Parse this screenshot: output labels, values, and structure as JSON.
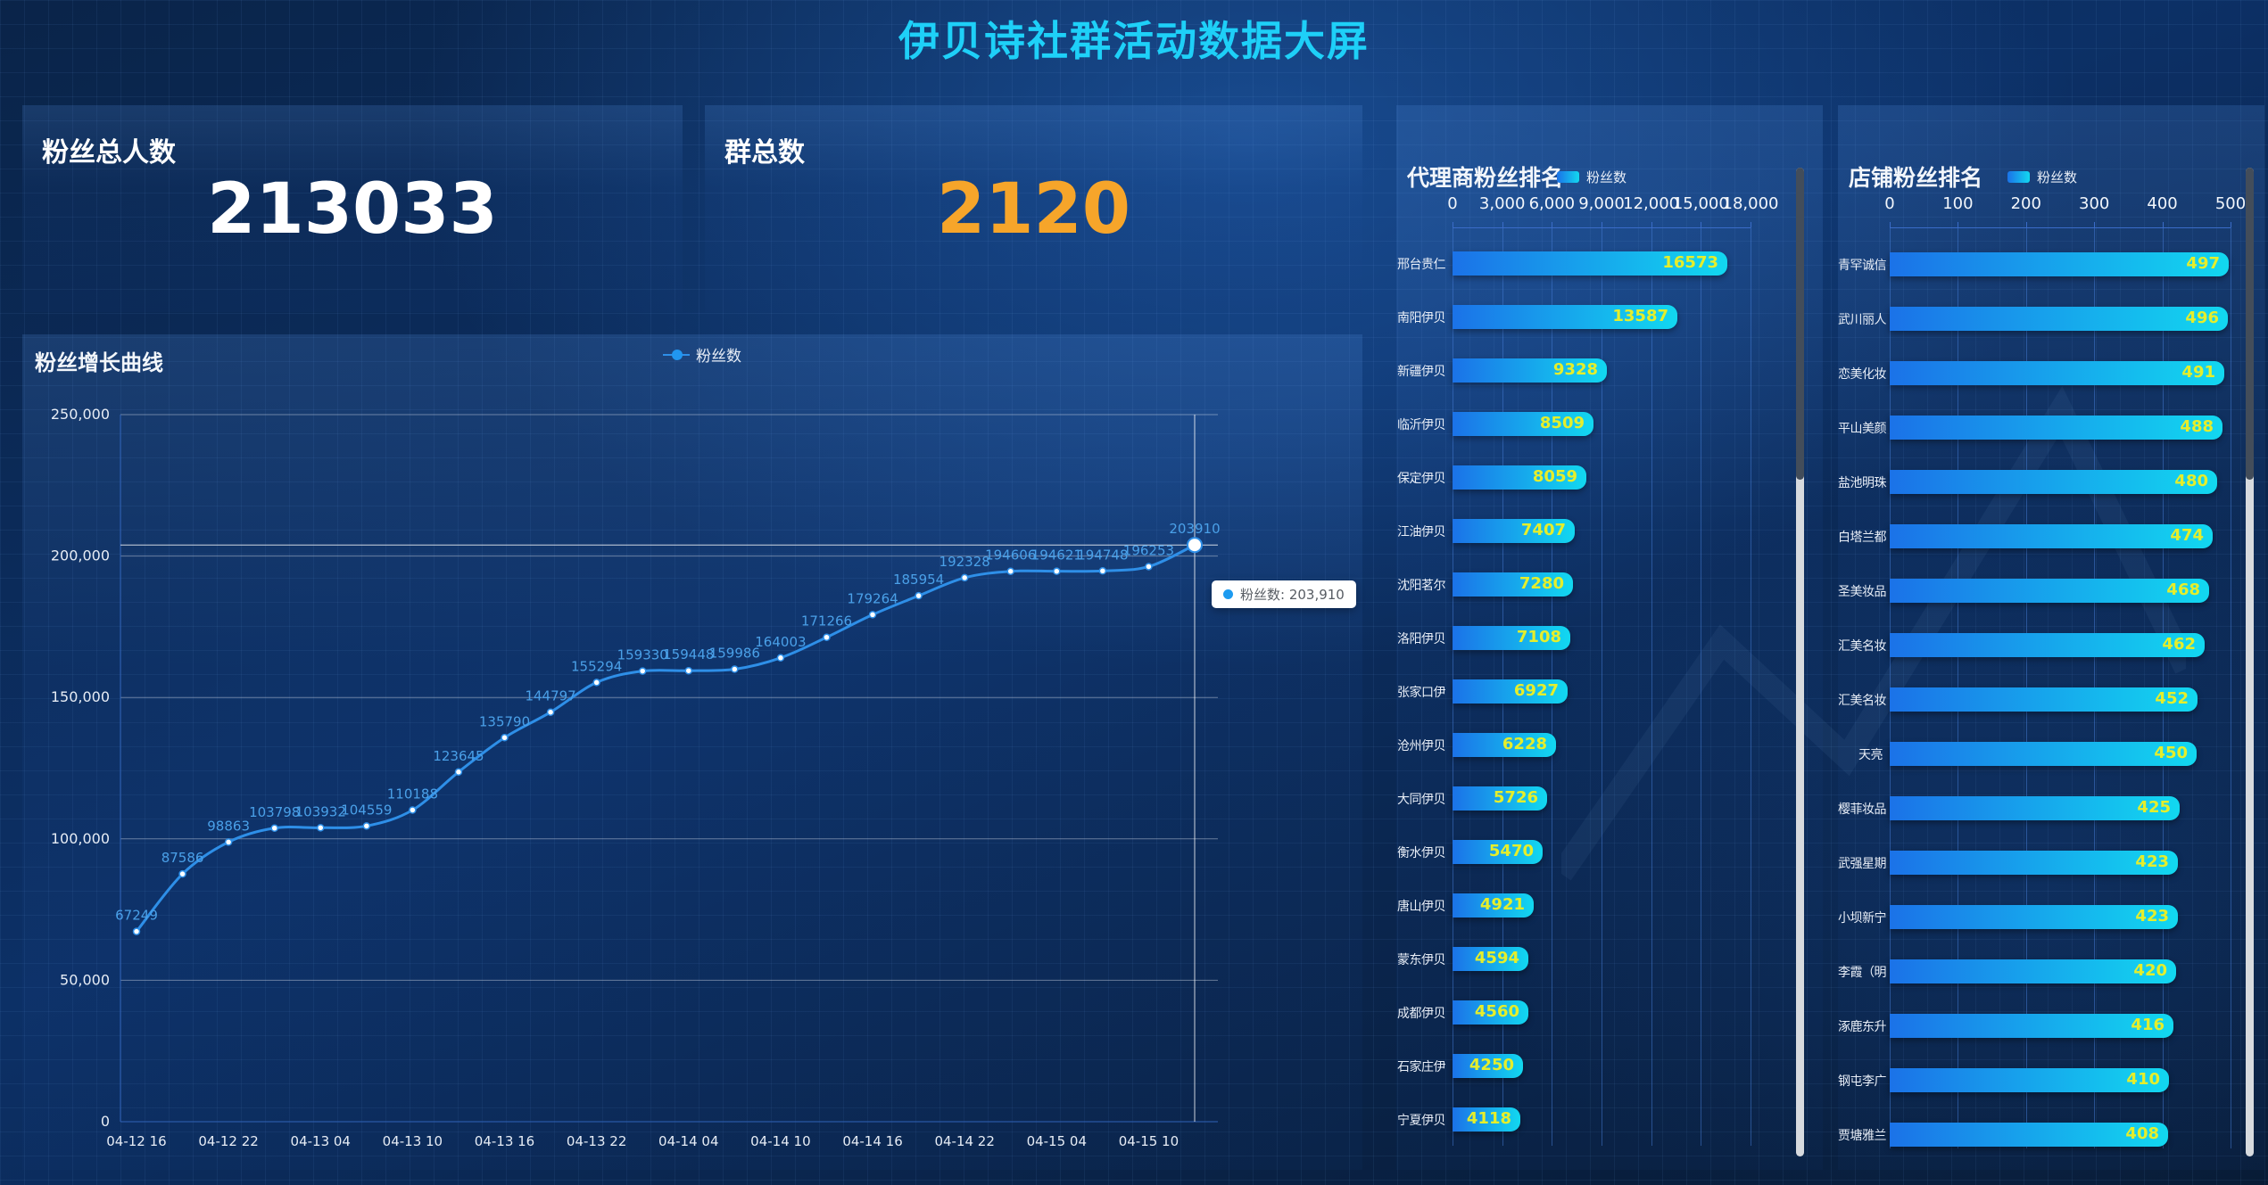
{
  "title": "伊贝诗社群活动数据大屏",
  "stats": {
    "fans_total": {
      "label": "粉丝总人数",
      "value": "213033"
    },
    "groups_total": {
      "label": "群总数",
      "value": "2120"
    }
  },
  "colors": {
    "accent_cyan": "#1ed0f8",
    "accent_orange": "#f6a52a",
    "line_blue": "#2e8fe8",
    "point_label_blue": "#4aa0e8",
    "bar_gradient_start": "#1b72e8",
    "bar_gradient_end": "#12d8f0",
    "bar_value_yellow": "#e5ee2b"
  },
  "chart_data": [
    {
      "id": "fans_growth",
      "type": "line",
      "title": "粉丝增长曲线",
      "legend": [
        "粉丝数"
      ],
      "legend_position": "top-center",
      "x_tick_labels": [
        "04-12 16",
        "04-12 22",
        "04-13 04",
        "04-13 10",
        "04-13 16",
        "04-13 22",
        "04-14 04",
        "04-14 10",
        "04-14 16",
        "04-14 22",
        "04-15 04",
        "04-15 10"
      ],
      "x_tick_note": "labels shown on every 2nd of 24 points",
      "values": [
        67249,
        87586,
        98863,
        103798,
        103932,
        104559,
        110188,
        123645,
        135790,
        144797,
        155294,
        159330,
        159448,
        159986,
        164003,
        171266,
        179264,
        185954,
        192328,
        194606,
        194621,
        194748,
        196253,
        203910
      ],
      "ylim": [
        0,
        250000
      ],
      "y_tick_labels": [
        "0",
        "50,000",
        "100,000",
        "150,000",
        "200,000",
        "250,000"
      ],
      "grid": true,
      "highlight": {
        "index": 23,
        "tooltip": "粉丝数: 203,910"
      }
    },
    {
      "id": "agent_fans_ranking",
      "type": "bar",
      "title": "代理商粉丝排名",
      "legend": [
        "粉丝数"
      ],
      "orientation": "horizontal",
      "xlim": [
        0,
        18000
      ],
      "x_tick_labels": [
        "0",
        "3,000",
        "6,000",
        "9,000",
        "12,000",
        "15,000",
        "18,000"
      ],
      "categories": [
        "邢台贵仁",
        "南阳伊贝",
        "新疆伊贝",
        "临沂伊贝",
        "保定伊贝",
        "江油伊贝",
        "沈阳茗尔",
        "洛阳伊贝",
        "张家口伊",
        "沧州伊贝",
        "大同伊贝",
        "衡水伊贝",
        "唐山伊贝",
        "蒙东伊贝",
        "成都伊贝",
        "石家庄伊",
        "宁夏伊贝"
      ],
      "values": [
        16573,
        13587,
        9328,
        8509,
        8059,
        7407,
        7280,
        7108,
        6927,
        6228,
        5726,
        5470,
        4921,
        4594,
        4560,
        4250,
        4118
      ],
      "scrollbar": true
    },
    {
      "id": "store_fans_ranking",
      "type": "bar",
      "title": "店铺粉丝排名",
      "legend": [
        "粉丝数"
      ],
      "orientation": "horizontal",
      "xlim": [
        0,
        500
      ],
      "x_tick_labels": [
        "0",
        "100",
        "200",
        "300",
        "400",
        "500"
      ],
      "categories": [
        "青罕诚信",
        "武川丽人",
        "恋美化妆",
        "平山美颜",
        "盐池明珠",
        "白塔兰都",
        "圣美妆品",
        "汇美名妆",
        "汇美名妆",
        "天亮",
        "樱菲妆品",
        "武强星期",
        "小坝新宁",
        "李霞（明",
        "涿鹿东升",
        "钢屯李广",
        "贾塘雅兰"
      ],
      "values": [
        497,
        496,
        491,
        488,
        480,
        474,
        468,
        462,
        452,
        450,
        425,
        423,
        423,
        420,
        416,
        410,
        408
      ],
      "scrollbar": true
    }
  ]
}
